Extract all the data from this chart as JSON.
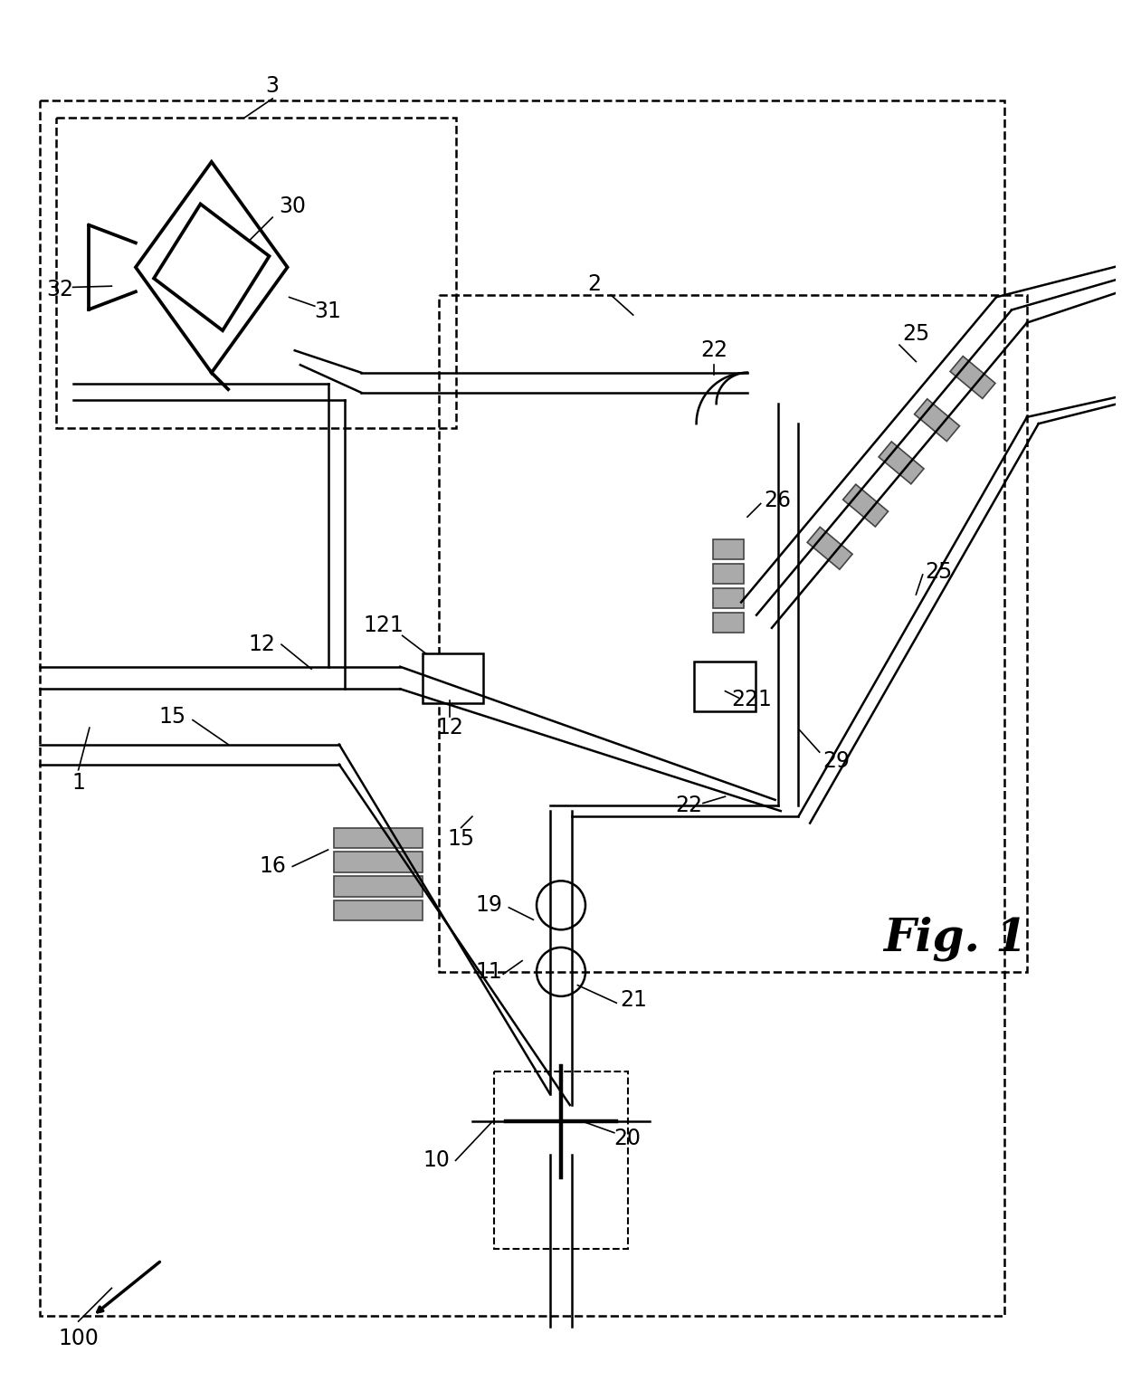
{
  "bg_color": "#ffffff",
  "lc": "#000000",
  "gray": "#999999",
  "lw_main": 2.2,
  "lw_ch": 1.8,
  "lw_dash": 1.8,
  "label_fs": 17,
  "fig1_fs": 36
}
